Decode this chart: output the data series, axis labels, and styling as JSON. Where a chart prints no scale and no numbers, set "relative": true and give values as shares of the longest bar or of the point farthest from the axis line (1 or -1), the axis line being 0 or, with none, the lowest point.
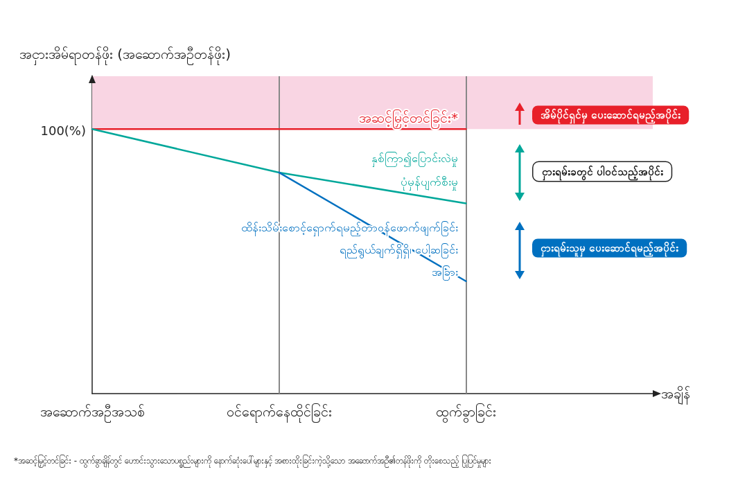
{
  "chart_data": {
    "type": "line",
    "relative": true,
    "ylabel": "အငှားအိမ်ရာတန်ဖိုး (အဆောက်အဦတန်ဖိုး)",
    "xlabel": "အချိန်",
    "categories": [
      "အဆောက်အဦအသစ်",
      "ဝင်ရောက်နေထိုင်ခြင်း",
      "ထွက်ခွာခြင်း",
      null
    ],
    "series": [
      {
        "color": "#e8202a",
        "values": [
          1,
          1,
          1,
          null
        ]
      },
      {
        "color": "#00a79a",
        "values": [
          1,
          0.836,
          0.719,
          null
        ]
      },
      {
        "color": "#0070c0",
        "values": [
          null,
          0.836,
          0.425,
          null
        ]
      }
    ],
    "marker": "none",
    "line_style": "solid",
    "bands": [
      {
        "axis": "y",
        "from": 1,
        "to": 1.2,
        "color": "#f9d5e3"
      }
    ],
    "ref_lines": [
      {
        "axis": "x",
        "value": "ဝင်ရောက်နေထိုင်ခြင်း",
        "color": "#888888"
      },
      {
        "axis": "x",
        "value": "ထွက်ခွာခြင်း",
        "color": "#888888"
      }
    ],
    "annotations": [
      "100(%)",
      "အဆင့်မြှင့်တင်ခြင်း*",
      "နှစ်ကြာ၍ပြောင်းလဲမှု",
      "ပုံမှန်ပျက်စီးမှု",
      "ထိန်းသိမ်းစောင့်ရှောက်ရမည့်တာဝန်ဖောက်ဖျက်ခြင်း",
      "ရည်ရွယ်ချက်ရှိရှိ၊ ပေါ့ဆခြင်း",
      "အခြား",
      "အိမ်ပိုင်ရှင်မှ ပေးဆောင်ရမည့်အပိုင်း",
      "ငှားရမ်းခတွင် ပါဝင်သည့်အပိုင်း",
      "ငှားရမ်းသူမှ ပေးဆောင်ရမည့်အပိုင်း",
      "*အဆင့်မြှင့်တင်ခြင်း - ထွက်ခွာချိန်တွင် ဟောင်းသွားသောပစ္စည်းများကို နောက်ဆုံးပေါ်များနှင့် အစားထိုးခြင်းကဲ့သို့သော အဆောက်အဦ၏တန်ဖိုးကို တိုးစေသည့် ပြုပြင်မှုများ"
    ]
  }
}
